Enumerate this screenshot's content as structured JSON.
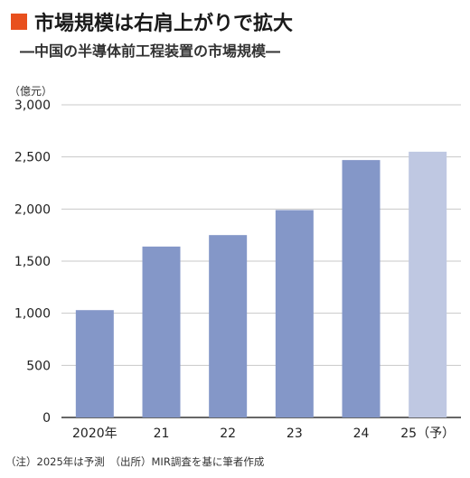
{
  "header": {
    "title": "市場規模は右肩上がりで拡大",
    "subtitle": "―中国の半導体前工程装置の市場規模―"
  },
  "colors": {
    "accent": "#e8501e",
    "bar": "#8497c8",
    "bar_forecast": "#bfc8e2",
    "grid": "#c8c8c8",
    "axis": "#333333"
  },
  "chart_data": {
    "type": "bar",
    "unit_label": "（億元）",
    "categories": [
      "2020年",
      "21",
      "22",
      "23",
      "24",
      "25（予）"
    ],
    "values": [
      1030,
      1640,
      1750,
      1990,
      2470,
      2550
    ],
    "forecast": [
      false,
      false,
      false,
      false,
      false,
      true
    ],
    "ylim": [
      0,
      3000
    ],
    "yticks": [
      0,
      500,
      1000,
      1500,
      2000,
      2500,
      3000
    ],
    "ytick_labels": [
      "0",
      "500",
      "1,000",
      "1,500",
      "2,000",
      "2,500",
      "3,000"
    ],
    "grid": true
  },
  "footnote": "（注）2025年は予測　（出所）MIR調査を基に筆者作成"
}
